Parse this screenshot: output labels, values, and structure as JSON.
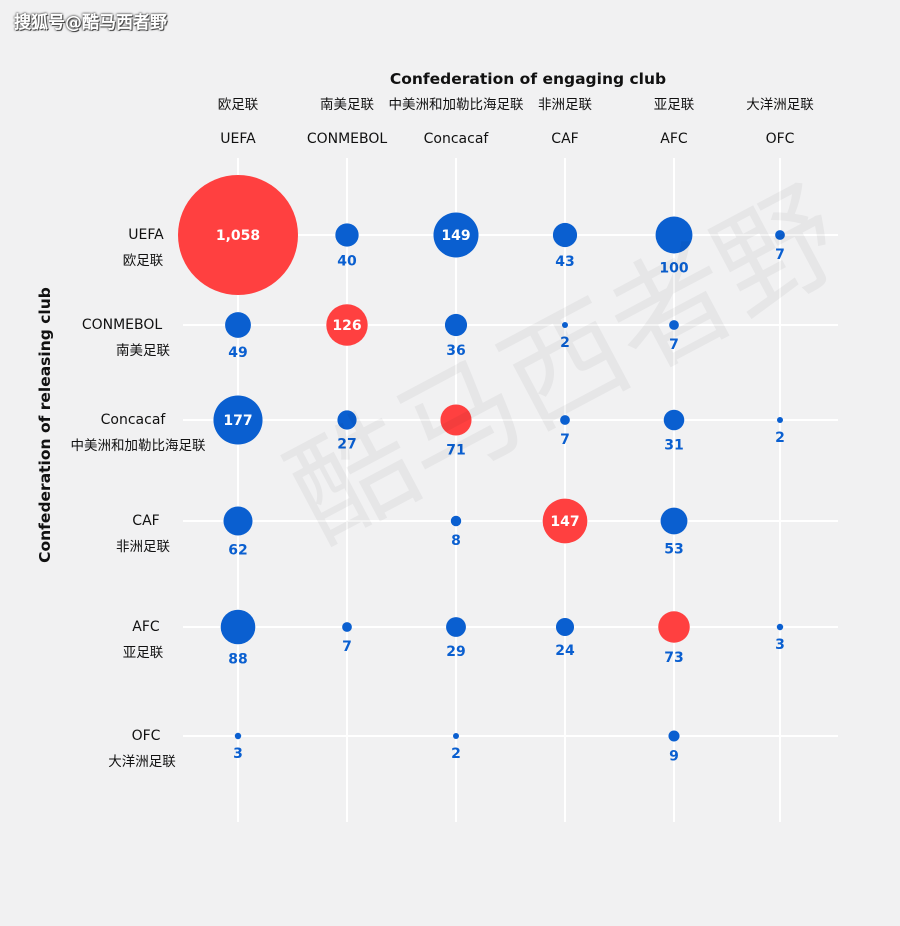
{
  "source_tag": "搜狐号@酷马西者野",
  "watermark": "酷马西者野",
  "colors": {
    "background": "#f1f1f2",
    "same_confederation": "#ff4040",
    "cross_confederation": "#0a5fd0",
    "value_label": "#0a5fd0",
    "grid": "#ffffff",
    "text": "#111111"
  },
  "chart_data": {
    "type": "bubble-matrix",
    "x_title": "Confederation of engaging club",
    "y_title": "Confederation of releasing club",
    "columns": [
      {
        "en": "UEFA",
        "zh": "欧足联"
      },
      {
        "en": "CONMEBOL",
        "zh": "南美足联"
      },
      {
        "en": "Concacaf",
        "zh": "中美洲和加勒比海足联"
      },
      {
        "en": "CAF",
        "zh": "非洲足联"
      },
      {
        "en": "AFC",
        "zh": "亚足联"
      },
      {
        "en": "OFC",
        "zh": "大洋洲足联"
      }
    ],
    "rows": [
      {
        "en": "UEFA",
        "zh": "欧足联"
      },
      {
        "en": "CONMEBOL",
        "zh": "南美足联"
      },
      {
        "en": "Concacaf",
        "zh": "中美洲和加勒比海足联"
      },
      {
        "en": "CAF",
        "zh": "非洲足联"
      },
      {
        "en": "AFC",
        "zh": "亚足联"
      },
      {
        "en": "OFC",
        "zh": "大洋洲足联"
      }
    ],
    "cells": [
      {
        "row": 0,
        "col": 0,
        "value": 1058,
        "label": "1,058"
      },
      {
        "row": 0,
        "col": 1,
        "value": 40,
        "label": "40"
      },
      {
        "row": 0,
        "col": 2,
        "value": 149,
        "label": "149"
      },
      {
        "row": 0,
        "col": 3,
        "value": 43,
        "label": "43"
      },
      {
        "row": 0,
        "col": 4,
        "value": 100,
        "label": "100"
      },
      {
        "row": 0,
        "col": 5,
        "value": 7,
        "label": "7"
      },
      {
        "row": 1,
        "col": 0,
        "value": 49,
        "label": "49"
      },
      {
        "row": 1,
        "col": 1,
        "value": 126,
        "label": "126"
      },
      {
        "row": 1,
        "col": 2,
        "value": 36,
        "label": "36"
      },
      {
        "row": 1,
        "col": 3,
        "value": 2,
        "label": "2"
      },
      {
        "row": 1,
        "col": 4,
        "value": 7,
        "label": "7"
      },
      {
        "row": 2,
        "col": 0,
        "value": 177,
        "label": "177"
      },
      {
        "row": 2,
        "col": 1,
        "value": 27,
        "label": "27"
      },
      {
        "row": 2,
        "col": 2,
        "value": 71,
        "label": "71"
      },
      {
        "row": 2,
        "col": 3,
        "value": 7,
        "label": "7"
      },
      {
        "row": 2,
        "col": 4,
        "value": 31,
        "label": "31"
      },
      {
        "row": 2,
        "col": 5,
        "value": 2,
        "label": "2"
      },
      {
        "row": 3,
        "col": 0,
        "value": 62,
        "label": "62"
      },
      {
        "row": 3,
        "col": 2,
        "value": 8,
        "label": "8"
      },
      {
        "row": 3,
        "col": 3,
        "value": 147,
        "label": "147"
      },
      {
        "row": 3,
        "col": 4,
        "value": 53,
        "label": "53"
      },
      {
        "row": 4,
        "col": 0,
        "value": 88,
        "label": "88"
      },
      {
        "row": 4,
        "col": 1,
        "value": 7,
        "label": "7"
      },
      {
        "row": 4,
        "col": 2,
        "value": 29,
        "label": "29"
      },
      {
        "row": 4,
        "col": 3,
        "value": 24,
        "label": "24"
      },
      {
        "row": 4,
        "col": 4,
        "value": 73,
        "label": "73"
      },
      {
        "row": 4,
        "col": 5,
        "value": 3,
        "label": "3"
      },
      {
        "row": 5,
        "col": 0,
        "value": 3,
        "label": "3"
      },
      {
        "row": 5,
        "col": 2,
        "value": 2,
        "label": "2"
      },
      {
        "row": 5,
        "col": 4,
        "value": 9,
        "label": "9"
      }
    ]
  }
}
